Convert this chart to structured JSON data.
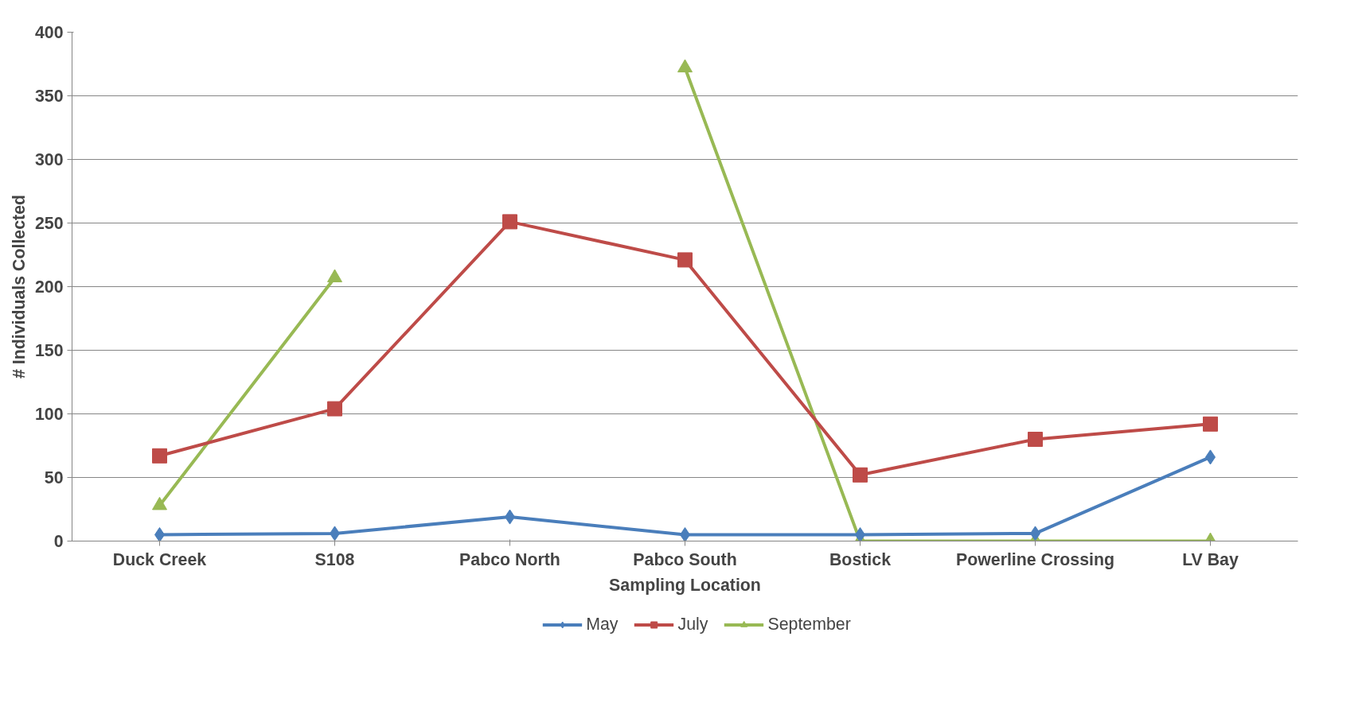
{
  "chart_data": {
    "type": "line",
    "xlabel": "Sampling Location",
    "ylabel": "# Individuals Collected",
    "categories": [
      "Duck Creek",
      "S108",
      "Pabco North",
      "Pabco South",
      "Bostick",
      "Powerline Crossing",
      "LV Bay"
    ],
    "series": [
      {
        "name": "May",
        "color": "#4a7ebb",
        "marker": "diamond",
        "values": [
          5,
          6,
          19,
          5,
          5,
          6,
          66
        ]
      },
      {
        "name": "July",
        "color": "#be4b48",
        "marker": "square",
        "values": [
          67,
          104,
          251,
          221,
          52,
          80,
          92
        ]
      },
      {
        "name": "September",
        "color": "#98b954",
        "marker": "triangle",
        "values": [
          28,
          207,
          null,
          372,
          0,
          0,
          0
        ]
      }
    ],
    "ylim": [
      0,
      400
    ],
    "yticks": [
      0,
      50,
      100,
      150,
      200,
      250,
      300,
      350,
      400
    ],
    "grid": "y",
    "legend": "bottom",
    "line_style": "solid"
  }
}
